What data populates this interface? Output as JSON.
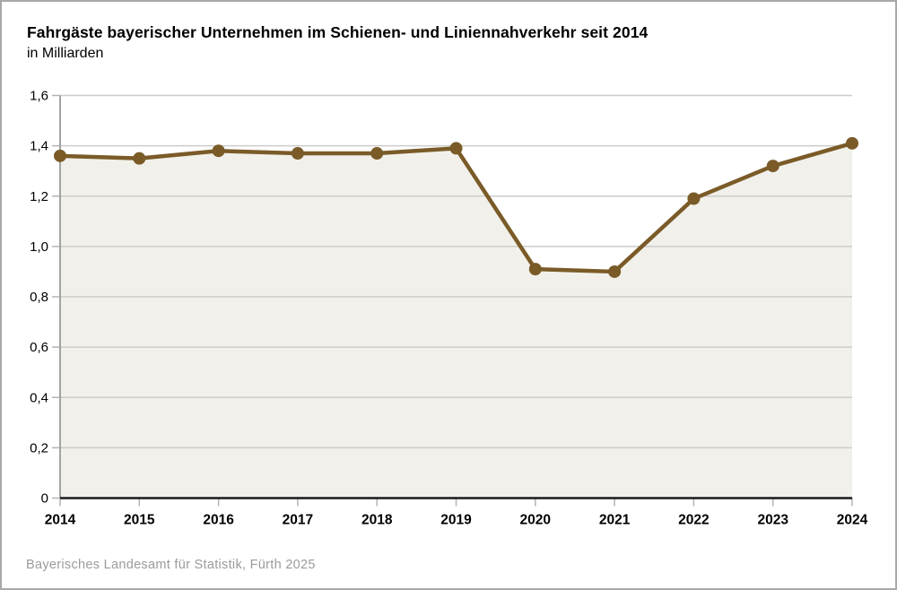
{
  "header": {
    "title": "Fahrgäste bayerischer Unternehmen im Schienen- und Liniennahverkehr seit 2014",
    "subtitle": "in Milliarden"
  },
  "footer": {
    "source": "Bayerisches Landesamt für Statistik, Fürth 2025"
  },
  "chart_data": {
    "type": "line",
    "title": "Fahrgäste bayerischer Unternehmen im Schienen- und Liniennahverkehr seit 2014",
    "subtitle": "in Milliarden",
    "categories": [
      "2014",
      "2015",
      "2016",
      "2017",
      "2018",
      "2019",
      "2020",
      "2021",
      "2022",
      "2023",
      "2024"
    ],
    "values": [
      1.36,
      1.35,
      1.38,
      1.37,
      1.37,
      1.39,
      0.91,
      0.9,
      1.19,
      1.32,
      1.41
    ],
    "xlabel": "",
    "ylabel": "",
    "ylim": [
      0,
      1.6
    ],
    "ytick_step": 0.2,
    "ytick_labels": [
      "0",
      "0,2",
      "0,4",
      "0,6",
      "0,8",
      "1,0",
      "1,2",
      "1,4",
      "1,6"
    ],
    "grid": true,
    "legend": "none",
    "colors": {
      "line": "#7A5B28",
      "marker": "#7A5B28",
      "area_fill": "#F2F0EA",
      "gridline": "#CCCCCC",
      "tick": "#B3B3B3",
      "axis_line": "#A3A3A3",
      "zero_line": "#1A1A1A",
      "label_text": "#000000"
    }
  }
}
